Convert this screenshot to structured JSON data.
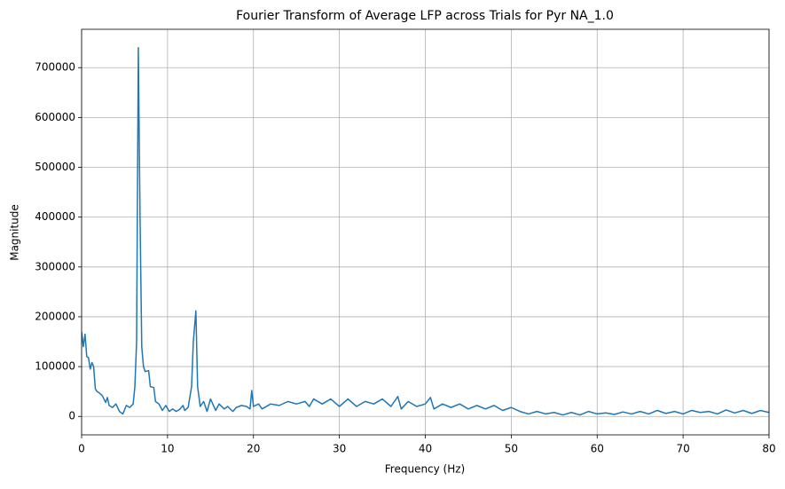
{
  "chart_data": {
    "type": "line",
    "title": "Fourier Transform of Average LFP across Trials for Pyr NA_1.0",
    "x_label": "Frequency (Hz)",
    "y_label": "Magnitude",
    "xlim": [
      0,
      80
    ],
    "xticks": [
      0,
      10,
      20,
      30,
      40,
      50,
      60,
      70,
      80
    ],
    "ylim": [
      -37000,
      777000
    ],
    "yticks": [
      0,
      100000,
      200000,
      300000,
      400000,
      500000,
      600000,
      700000
    ],
    "grid": true,
    "x": [
      0,
      0.2,
      0.4,
      0.6,
      0.8,
      1.0,
      1.2,
      1.4,
      1.6,
      1.8,
      2.0,
      2.4,
      2.8,
      3.0,
      3.2,
      3.6,
      4.0,
      4.4,
      4.8,
      5.2,
      5.6,
      6.0,
      6.2,
      6.4,
      6.6,
      6.8,
      7.0,
      7.2,
      7.4,
      7.8,
      8.0,
      8.4,
      8.6,
      9.0,
      9.4,
      9.8,
      10.2,
      10.6,
      11.0,
      11.4,
      11.8,
      12.0,
      12.4,
      12.8,
      13.0,
      13.3,
      13.5,
      13.8,
      14.2,
      14.6,
      15.0,
      15.6,
      16.0,
      16.6,
      17.0,
      17.6,
      18.0,
      18.6,
      19.2,
      19.6,
      19.8,
      20.0,
      20.6,
      21.0,
      22.0,
      23.0,
      24.0,
      25.0,
      26.0,
      26.5,
      27.0,
      28.0,
      29.0,
      30.0,
      31.0,
      32.0,
      33.0,
      34.0,
      35.0,
      36.0,
      36.8,
      37.2,
      38.0,
      39.0,
      40.0,
      40.6,
      41.0,
      42.0,
      43.0,
      44.0,
      45.0,
      46.0,
      47.0,
      48.0,
      49.0,
      50.0,
      51.0,
      52.0,
      53.0,
      54.0,
      55.0,
      56.0,
      57.0,
      58.0,
      59.0,
      60.0,
      61.0,
      62.0,
      63.0,
      64.0,
      65.0,
      66.0,
      67.0,
      68.0,
      69.0,
      70.0,
      71.0,
      72.0,
      73.0,
      74.0,
      75.0,
      76.0,
      77.0,
      78.0,
      79.0,
      80.0
    ],
    "series": [
      {
        "color": "#1f77b4",
        "values": [
          170000,
          140000,
          165000,
          120000,
          118000,
          95000,
          108000,
          100000,
          55000,
          50000,
          48000,
          42000,
          28000,
          38000,
          22000,
          18000,
          25000,
          10000,
          5000,
          22000,
          18000,
          25000,
          60000,
          150000,
          740000,
          400000,
          140000,
          100000,
          90000,
          92000,
          60000,
          58000,
          30000,
          25000,
          12000,
          22000,
          10000,
          15000,
          10000,
          14000,
          22000,
          12000,
          18000,
          60000,
          150000,
          212000,
          60000,
          20000,
          30000,
          10000,
          35000,
          12000,
          25000,
          15000,
          20000,
          10000,
          18000,
          22000,
          20000,
          15000,
          52000,
          20000,
          25000,
          15000,
          25000,
          22000,
          30000,
          25000,
          30000,
          20000,
          35000,
          25000,
          35000,
          20000,
          35000,
          20000,
          30000,
          25000,
          35000,
          20000,
          40000,
          15000,
          30000,
          20000,
          25000,
          38000,
          15000,
          25000,
          18000,
          25000,
          15000,
          22000,
          15000,
          22000,
          12000,
          18000,
          10000,
          5000,
          10000,
          5000,
          8000,
          3000,
          8000,
          3000,
          10000,
          5000,
          7000,
          4000,
          9000,
          5000,
          10000,
          5000,
          12000,
          6000,
          10000,
          5000,
          12000,
          8000,
          10000,
          5000,
          13000,
          7000,
          12000,
          6000,
          12000,
          8000
        ]
      }
    ]
  }
}
